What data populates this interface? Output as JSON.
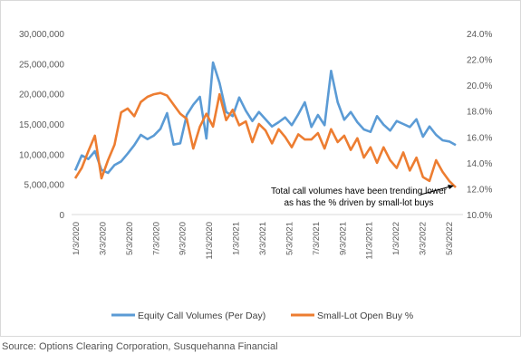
{
  "source": "Source: Options Clearing Corporation, Susquehanna Financial",
  "chart_data": {
    "type": "line",
    "title": "",
    "xlabel": "",
    "ylabel": "",
    "grid": false,
    "legend_position": "bottom",
    "x_tick_labels": [
      "1/3/2020",
      "3/3/2020",
      "5/3/2020",
      "7/3/2020",
      "9/3/2020",
      "11/3/2020",
      "1/3/2021",
      "3/3/2021",
      "5/3/2021",
      "7/3/2021",
      "9/3/2021",
      "11/3/2021",
      "1/3/2022",
      "3/3/2022",
      "5/3/2022"
    ],
    "y_left": {
      "ticks": [
        "0",
        "5,000,000",
        "10,000,000",
        "15,000,000",
        "20,000,000",
        "25,000,000",
        "30,000,000"
      ],
      "ylim": [
        0,
        30000000
      ]
    },
    "y_right": {
      "ticks": [
        "10.0%",
        "12.0%",
        "14.0%",
        "16.0%",
        "18.0%",
        "20.0%",
        "22.0%",
        "24.0%"
      ],
      "ylim": [
        10,
        24
      ]
    },
    "annotation": {
      "lines": [
        "Total call volumes have been trending lower",
        "as has the % driven by small-lot buys"
      ]
    },
    "series": [
      {
        "name": "Equity Call Volumes (Per Day)",
        "axis": "left",
        "color": "#5b9bd5",
        "x": [
          0,
          0.5,
          1,
          1.5,
          2,
          2.5,
          3,
          3.5,
          4,
          4.5,
          5,
          5.5,
          6,
          6.5,
          7,
          7.5,
          8,
          8.5,
          9,
          9.5,
          10,
          10.5,
          11,
          11.5,
          12,
          12.5,
          13,
          13.5,
          14,
          14.5,
          15,
          15.5,
          16,
          16.5,
          17,
          17.5,
          18,
          18.5,
          19,
          19.5,
          20,
          20.5,
          21,
          21.5,
          22,
          22.5,
          23,
          23.5,
          24,
          24.5,
          25,
          25.5,
          26,
          26.5,
          27,
          27.5,
          28,
          28.5,
          29
        ],
        "y": [
          7300000,
          9800000,
          9200000,
          10500000,
          7400000,
          6900000,
          8200000,
          8800000,
          10100000,
          11500000,
          13200000,
          12500000,
          13100000,
          14200000,
          16800000,
          11600000,
          11800000,
          16500000,
          18200000,
          19500000,
          12600000,
          25200000,
          21800000,
          17000000,
          16300000,
          19400000,
          17200000,
          15500000,
          17000000,
          15800000,
          14600000,
          15300000,
          16100000,
          14800000,
          16600000,
          18600000,
          14500000,
          16500000,
          14800000,
          23800000,
          18600000,
          15700000,
          17000000,
          15300000,
          14100000,
          13700000,
          16300000,
          14900000,
          13900000,
          15500000,
          15000000,
          14500000,
          15800000,
          12900000,
          14600000,
          13200000,
          12300000,
          12100000,
          11500000
        ]
      },
      {
        "name": "Small-Lot Open Buy %",
        "axis": "right",
        "color": "#ed7d31",
        "x": [
          0,
          0.5,
          1,
          1.5,
          2,
          2.5,
          3,
          3.5,
          4,
          4.5,
          5,
          5.5,
          6,
          6.5,
          7,
          7.5,
          8,
          8.5,
          9,
          9.5,
          10,
          10.5,
          11,
          11.5,
          12,
          12.5,
          13,
          13.5,
          14,
          14.5,
          15,
          15.5,
          16,
          16.5,
          17,
          17.5,
          18,
          18.5,
          19,
          19.5,
          20,
          20.5,
          21,
          21.5,
          22,
          22.5,
          23,
          23.5,
          24,
          24.5,
          25,
          25.5,
          26,
          26.5,
          27,
          27.5,
          28,
          28.5,
          29
        ],
        "y": [
          12.8,
          13.6,
          14.9,
          16.1,
          12.8,
          14.2,
          15.4,
          17.9,
          18.2,
          17.6,
          18.7,
          19.1,
          19.3,
          19.4,
          19.2,
          18.5,
          17.8,
          17.4,
          15.1,
          16.8,
          17.8,
          16.8,
          19.3,
          17.3,
          18.1,
          16.9,
          17.2,
          15.6,
          17.0,
          16.5,
          15.5,
          16.6,
          16.0,
          15.2,
          16.2,
          15.8,
          15.8,
          16.3,
          15.1,
          16.6,
          15.6,
          16.1,
          15.0,
          15.9,
          14.4,
          15.2,
          14.0,
          15.2,
          14.2,
          13.6,
          14.8,
          13.4,
          14.4,
          12.9,
          12.6,
          14.2,
          13.3,
          12.6,
          12.1
        ]
      }
    ]
  }
}
